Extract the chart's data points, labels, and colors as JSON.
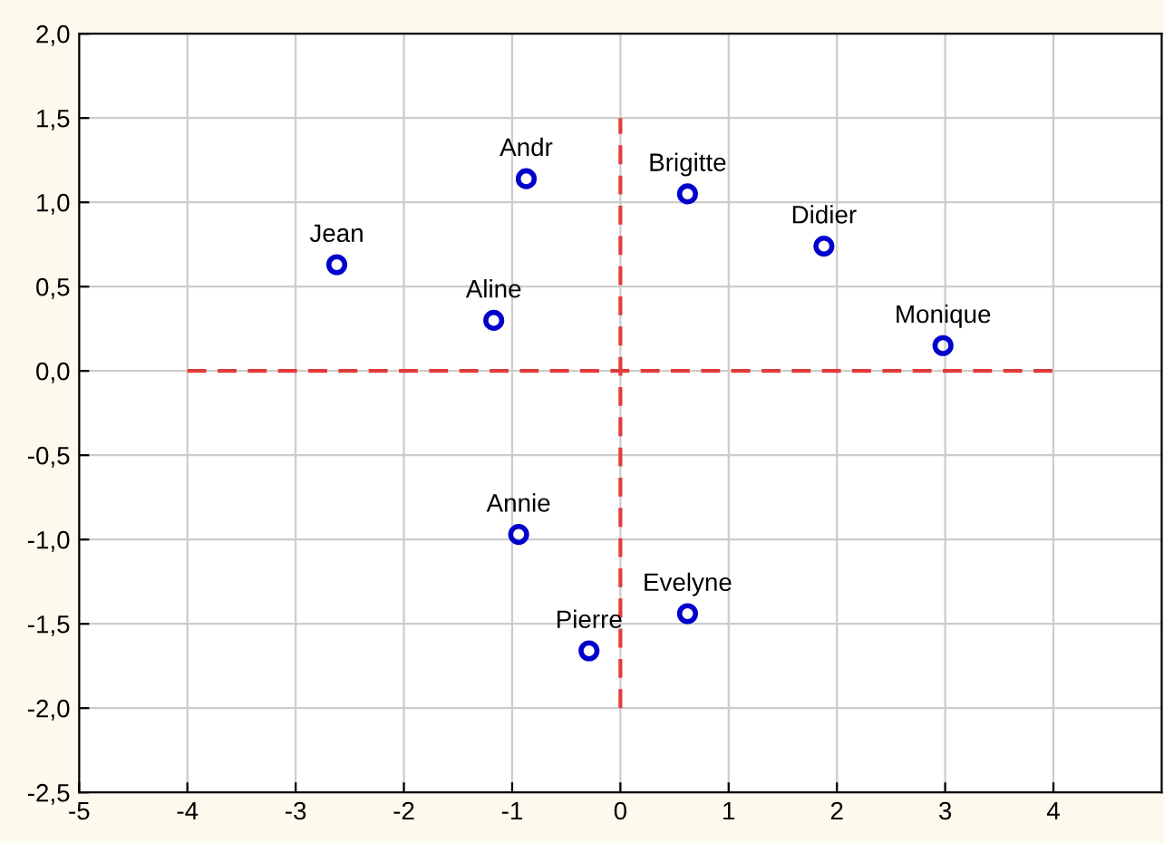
{
  "chart_data": {
    "type": "scatter",
    "xlim": [
      -5,
      5
    ],
    "xticks": [
      -5,
      -4,
      -3,
      -2,
      -1,
      0,
      1,
      2,
      3,
      4
    ],
    "ylim": [
      -2.5,
      2.0
    ],
    "yticks": [
      {
        "value": -2.5,
        "label": "-2,5"
      },
      {
        "value": -2.0,
        "label": "-2,0"
      },
      {
        "value": -1.5,
        "label": "-1,5"
      },
      {
        "value": -1.0,
        "label": "-1,0"
      },
      {
        "value": -0.5,
        "label": "-0,5"
      },
      {
        "value": 0.0,
        "label": "0,0"
      },
      {
        "value": 0.5,
        "label": "0,5"
      },
      {
        "value": 1.0,
        "label": "1,0"
      },
      {
        "value": 1.5,
        "label": "1,5"
      },
      {
        "value": 2.0,
        "label": "2,0"
      }
    ],
    "grid": true,
    "series": [
      {
        "marker": "circle",
        "color": "#0000cc",
        "x": [
          -2.62,
          -0.87,
          -1.17,
          0.62,
          1.88,
          2.98,
          -0.94,
          0.62,
          -0.29
        ],
        "values": [
          0.63,
          1.14,
          0.3,
          1.05,
          0.74,
          0.15,
          -0.97,
          -1.44,
          -1.66
        ]
      },
      {
        "type": "line",
        "color": "#e03c3c",
        "line_style": "dashed",
        "x": [
          -4,
          4
        ],
        "values": [
          0,
          0
        ]
      },
      {
        "type": "line",
        "color": "#e03c3c",
        "line_style": "dashed",
        "x": [
          0,
          0
        ],
        "values": [
          -2.0,
          1.5
        ]
      }
    ],
    "annotations": [
      {
        "text": "Jean",
        "x": -2.62,
        "y": 0.63
      },
      {
        "text": "Andr",
        "x": -0.87,
        "y": 1.14
      },
      {
        "text": "Aline",
        "x": -1.17,
        "y": 0.3
      },
      {
        "text": "Brigitte",
        "x": 0.62,
        "y": 1.05
      },
      {
        "text": "Didier",
        "x": 1.88,
        "y": 0.74
      },
      {
        "text": "Monique",
        "x": 2.98,
        "y": 0.15
      },
      {
        "text": "Annie",
        "x": -0.94,
        "y": -0.97
      },
      {
        "text": "Evelyne",
        "x": 0.62,
        "y": -1.44
      },
      {
        "text": "Pierre",
        "x": -0.29,
        "y": -1.66
      }
    ]
  }
}
